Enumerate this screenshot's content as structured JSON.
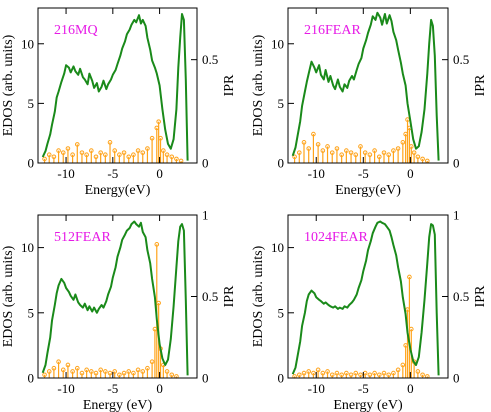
{
  "colors": {
    "edos": "#1a8a1a",
    "ipr": "#ffa31a",
    "title": "#e61ae6",
    "axes": "#000000"
  },
  "chart_data": [
    {
      "type": "line",
      "title": "216MQ",
      "xlabel": "Energy(eV)",
      "ylabel": "EDOS (arb. units)",
      "y2label": "IPR",
      "xlim": [
        -13,
        4
      ],
      "ylim": [
        0,
        13
      ],
      "y2lim": [
        0,
        0.75
      ],
      "x_ticks": [
        -10,
        -5,
        0
      ],
      "x_tick_labels": [
        "-10",
        "-5",
        "0"
      ],
      "y_ticks": [
        0,
        5,
        10
      ],
      "y_tick_labels": [
        "0",
        "5",
        "10"
      ],
      "y2_ticks": [
        0,
        0.5
      ],
      "y2_tick_labels": [
        "0",
        "0.5"
      ],
      "series": [
        {
          "axis": "left",
          "x": [
            -12.5,
            -12.2,
            -12.0,
            -11.7,
            -11.5,
            -11.2,
            -11.0,
            -10.8,
            -10.5,
            -10.2,
            -10.0,
            -9.7,
            -9.5,
            -9.2,
            -9.0,
            -8.7,
            -8.5,
            -8.2,
            -8.0,
            -7.7,
            -7.5,
            -7.2,
            -7.0,
            -6.7,
            -6.5,
            -6.2,
            -6.0,
            -5.7,
            -5.5,
            -5.2,
            -5.0,
            -4.7,
            -4.5,
            -4.2,
            -4.0,
            -3.7,
            -3.5,
            -3.2,
            -3.0,
            -2.7,
            -2.5,
            -2.2,
            -2.0,
            -1.8,
            -1.5,
            -1.3,
            -1.0,
            -0.8,
            -0.5,
            -0.3,
            0.0,
            0.3,
            0.6,
            0.9,
            1.2,
            1.5,
            1.8,
            2.0,
            2.2,
            2.4,
            2.6,
            2.8,
            3.0
          ],
          "y": [
            0.5,
            1.0,
            1.6,
            2.4,
            3.2,
            4.3,
            5.5,
            6.0,
            6.8,
            7.5,
            8.2,
            8.0,
            7.6,
            8.1,
            7.7,
            7.4,
            7.9,
            7.2,
            7.0,
            6.6,
            7.5,
            6.9,
            6.3,
            6.7,
            6.0,
            6.4,
            6.9,
            6.2,
            6.6,
            7.0,
            7.4,
            7.8,
            8.3,
            9.0,
            9.6,
            10.2,
            10.8,
            11.2,
            11.6,
            12.0,
            11.8,
            12.4,
            11.7,
            12.0,
            11.5,
            10.5,
            9.5,
            8.6,
            8.0,
            7.5,
            6.5,
            4.5,
            2.8,
            1.6,
            1.2,
            2.0,
            4.5,
            8.0,
            10.5,
            12.5,
            12.0,
            7.0,
            0.2
          ]
        },
        {
          "axis": "right",
          "x": [
            -12.3,
            -11.8,
            -11.3,
            -10.8,
            -10.3,
            -9.8,
            -9.3,
            -8.8,
            -8.3,
            -7.8,
            -7.3,
            -6.8,
            -6.3,
            -5.8,
            -5.3,
            -4.8,
            -4.3,
            -3.8,
            -3.3,
            -2.8,
            -2.3,
            -1.8,
            -1.3,
            -0.8,
            -0.3,
            -0.1,
            0.1,
            0.4,
            0.8,
            1.3,
            1.8,
            2.3
          ],
          "y": [
            0.02,
            0.04,
            0.03,
            0.06,
            0.05,
            0.07,
            0.04,
            0.09,
            0.05,
            0.04,
            0.06,
            0.03,
            0.05,
            0.04,
            0.1,
            0.06,
            0.04,
            0.05,
            0.03,
            0.04,
            0.06,
            0.05,
            0.07,
            0.12,
            0.17,
            0.2,
            0.12,
            0.06,
            0.04,
            0.03,
            0.02,
            0.01
          ]
        }
      ]
    },
    {
      "type": "line",
      "title": "216FEAR",
      "xlabel": "Energy(eV)",
      "ylabel": "EDOS (arb. units)",
      "y2label": "IPR",
      "xlim": [
        -13,
        4
      ],
      "ylim": [
        0,
        13
      ],
      "y2lim": [
        0,
        0.75
      ],
      "x_ticks": [
        -10,
        -5,
        0
      ],
      "x_tick_labels": [
        "-10",
        "-5",
        "0"
      ],
      "y_ticks": [
        0,
        5,
        10
      ],
      "y_tick_labels": [
        "0",
        "5",
        "10"
      ],
      "y2_ticks": [
        0,
        0.5
      ],
      "y2_tick_labels": [
        "0",
        "0.5"
      ],
      "series": [
        {
          "axis": "left",
          "x": [
            -12.5,
            -12.2,
            -12.0,
            -11.7,
            -11.5,
            -11.2,
            -11.0,
            -10.8,
            -10.5,
            -10.2,
            -10.0,
            -9.7,
            -9.5,
            -9.2,
            -9.0,
            -8.7,
            -8.5,
            -8.2,
            -8.0,
            -7.7,
            -7.5,
            -7.2,
            -7.0,
            -6.7,
            -6.5,
            -6.2,
            -6.0,
            -5.7,
            -5.5,
            -5.2,
            -5.0,
            -4.7,
            -4.5,
            -4.2,
            -4.0,
            -3.7,
            -3.5,
            -3.2,
            -3.0,
            -2.7,
            -2.5,
            -2.2,
            -2.0,
            -1.8,
            -1.5,
            -1.3,
            -1.0,
            -0.8,
            -0.5,
            -0.3,
            0.0,
            0.3,
            0.6,
            0.9,
            1.2,
            1.5,
            1.8,
            2.0,
            2.2,
            2.4,
            2.6,
            2.8,
            3.0
          ],
          "y": [
            0.6,
            1.3,
            2.2,
            3.5,
            4.8,
            6.0,
            6.8,
            7.5,
            8.5,
            8.0,
            7.6,
            8.2,
            7.4,
            7.0,
            7.8,
            6.8,
            7.3,
            6.5,
            6.2,
            7.0,
            6.4,
            6.0,
            6.6,
            6.3,
            6.9,
            7.3,
            7.0,
            7.8,
            8.3,
            8.8,
            9.6,
            10.3,
            10.9,
            11.6,
            12.3,
            12.0,
            12.6,
            12.2,
            11.6,
            12.5,
            11.7,
            12.4,
            11.9,
            11.0,
            10.3,
            9.5,
            8.4,
            7.5,
            6.5,
            5.0,
            3.5,
            2.0,
            1.2,
            1.4,
            2.6,
            4.5,
            7.5,
            10.0,
            12.0,
            11.5,
            9.0,
            4.0,
            0.2
          ]
        },
        {
          "axis": "right",
          "x": [
            -12.3,
            -11.8,
            -11.3,
            -10.8,
            -10.3,
            -9.8,
            -9.3,
            -8.8,
            -8.3,
            -7.8,
            -7.3,
            -6.8,
            -6.3,
            -5.8,
            -5.3,
            -4.8,
            -4.3,
            -3.8,
            -3.3,
            -2.8,
            -2.3,
            -1.8,
            -1.3,
            -0.8,
            -0.5,
            -0.3,
            -0.1,
            0.1,
            0.4,
            0.8,
            1.3,
            1.8
          ],
          "y": [
            0.03,
            0.05,
            0.1,
            0.07,
            0.14,
            0.09,
            0.06,
            0.08,
            0.05,
            0.07,
            0.04,
            0.06,
            0.05,
            0.04,
            0.08,
            0.05,
            0.04,
            0.06,
            0.03,
            0.05,
            0.04,
            0.06,
            0.07,
            0.1,
            0.14,
            0.21,
            0.17,
            0.08,
            0.05,
            0.03,
            0.02,
            0.01
          ]
        }
      ]
    },
    {
      "type": "line",
      "title": "512FEAR",
      "xlabel": "Energy (eV)",
      "ylabel": "EDOS (arb. units)",
      "y2label": "IPR",
      "xlim": [
        -13,
        4
      ],
      "ylim": [
        0,
        12.5
      ],
      "y2lim": [
        0,
        1
      ],
      "x_ticks": [
        -10,
        -5,
        0
      ],
      "x_tick_labels": [
        "-10",
        "-5",
        "0"
      ],
      "y_ticks": [
        0,
        5,
        10
      ],
      "y_tick_labels": [
        "0",
        "5",
        "10"
      ],
      "y2_ticks": [
        0,
        0.5,
        1
      ],
      "y2_tick_labels": [
        "0",
        "0.5",
        "1"
      ],
      "series": [
        {
          "axis": "left",
          "x": [
            -12.5,
            -12.2,
            -12.0,
            -11.7,
            -11.5,
            -11.2,
            -11.0,
            -10.8,
            -10.5,
            -10.2,
            -10.0,
            -9.7,
            -9.5,
            -9.2,
            -9.0,
            -8.7,
            -8.5,
            -8.2,
            -8.0,
            -7.7,
            -7.5,
            -7.2,
            -7.0,
            -6.7,
            -6.5,
            -6.2,
            -6.0,
            -5.7,
            -5.5,
            -5.2,
            -5.0,
            -4.7,
            -4.5,
            -4.2,
            -4.0,
            -3.7,
            -3.5,
            -3.2,
            -3.0,
            -2.7,
            -2.5,
            -2.2,
            -2.0,
            -1.8,
            -1.5,
            -1.3,
            -1.0,
            -0.8,
            -0.5,
            -0.3,
            0.0,
            0.3,
            0.6,
            0.9,
            1.2,
            1.5,
            1.8,
            2.0,
            2.2,
            2.4,
            2.6,
            2.8,
            3.0
          ],
          "y": [
            0.4,
            1.0,
            1.9,
            3.1,
            4.4,
            5.6,
            6.5,
            7.1,
            7.6,
            7.3,
            6.9,
            6.6,
            6.3,
            6.0,
            6.4,
            5.8,
            5.6,
            5.4,
            5.7,
            5.2,
            5.5,
            5.1,
            5.4,
            5.0,
            5.3,
            5.6,
            5.4,
            5.9,
            6.4,
            7.0,
            7.7,
            8.5,
            9.3,
            10.0,
            10.6,
            11.0,
            11.3,
            11.5,
            11.8,
            12.0,
            11.8,
            11.6,
            11.9,
            11.2,
            10.8,
            9.8,
            8.8,
            7.6,
            6.2,
            4.5,
            2.6,
            1.5,
            1.0,
            1.4,
            3.0,
            5.5,
            8.5,
            10.5,
            11.6,
            11.8,
            11.3,
            6.0,
            0.2
          ]
        },
        {
          "axis": "right",
          "x": [
            -12.3,
            -11.8,
            -11.3,
            -10.8,
            -10.3,
            -9.8,
            -9.3,
            -8.8,
            -8.3,
            -7.8,
            -7.3,
            -6.8,
            -6.3,
            -5.8,
            -5.3,
            -4.8,
            -4.3,
            -3.8,
            -3.3,
            -2.8,
            -2.3,
            -1.8,
            -1.3,
            -0.8,
            -0.5,
            -0.3,
            -0.1,
            0.1,
            0.4,
            0.8,
            1.3,
            1.8
          ],
          "y": [
            0.02,
            0.04,
            0.06,
            0.1,
            0.05,
            0.08,
            0.04,
            0.06,
            0.03,
            0.05,
            0.04,
            0.03,
            0.05,
            0.04,
            0.03,
            0.04,
            0.02,
            0.03,
            0.04,
            0.03,
            0.05,
            0.04,
            0.06,
            0.1,
            0.3,
            0.82,
            0.46,
            0.18,
            0.08,
            0.04,
            0.02,
            0.01
          ]
        }
      ]
    },
    {
      "type": "line",
      "title": "1024FEAR",
      "xlabel": "Energy (eV)",
      "ylabel": "EDOS (arb. units)",
      "y2label": "IPR",
      "xlim": [
        -13,
        4
      ],
      "ylim": [
        0,
        12.5
      ],
      "y2lim": [
        0,
        1
      ],
      "x_ticks": [
        -10,
        -5,
        0
      ],
      "x_tick_labels": [
        "-10",
        "-5",
        "0"
      ],
      "y_ticks": [
        0,
        5,
        10
      ],
      "y_tick_labels": [
        "0",
        "5",
        "10"
      ],
      "y2_ticks": [
        0,
        0.5,
        1
      ],
      "y2_tick_labels": [
        "0",
        "0.5",
        "1"
      ],
      "series": [
        {
          "axis": "left",
          "x": [
            -12.5,
            -12.2,
            -12.0,
            -11.7,
            -11.5,
            -11.2,
            -11.0,
            -10.8,
            -10.5,
            -10.2,
            -10.0,
            -9.7,
            -9.5,
            -9.2,
            -9.0,
            -8.7,
            -8.5,
            -8.2,
            -8.0,
            -7.7,
            -7.5,
            -7.2,
            -7.0,
            -6.7,
            -6.5,
            -6.2,
            -6.0,
            -5.7,
            -5.5,
            -5.2,
            -5.0,
            -4.7,
            -4.5,
            -4.2,
            -4.0,
            -3.7,
            -3.5,
            -3.2,
            -3.0,
            -2.7,
            -2.5,
            -2.2,
            -2.0,
            -1.8,
            -1.5,
            -1.3,
            -1.0,
            -0.8,
            -0.5,
            -0.3,
            0.0,
            0.3,
            0.6,
            0.9,
            1.2,
            1.5,
            1.8,
            2.0,
            2.2,
            2.4,
            2.6,
            2.8,
            3.0
          ],
          "y": [
            0.3,
            0.8,
            1.6,
            2.8,
            4.0,
            5.0,
            5.9,
            6.4,
            6.7,
            6.5,
            6.2,
            6.0,
            5.9,
            5.7,
            5.8,
            5.6,
            5.5,
            5.4,
            5.5,
            5.3,
            5.4,
            5.3,
            5.5,
            5.4,
            5.6,
            5.8,
            6.0,
            6.4,
            6.9,
            7.5,
            8.2,
            9.0,
            9.8,
            10.5,
            11.1,
            11.6,
            11.9,
            12.0,
            11.9,
            11.8,
            11.6,
            11.3,
            10.8,
            10.2,
            9.4,
            8.5,
            7.4,
            6.2,
            4.9,
            3.5,
            2.2,
            1.3,
            1.0,
            1.6,
            3.5,
            6.0,
            8.8,
            10.8,
            11.8,
            11.7,
            11.0,
            5.0,
            0.2
          ]
        },
        {
          "axis": "right",
          "x": [
            -12.3,
            -11.8,
            -11.3,
            -10.8,
            -10.3,
            -9.8,
            -9.3,
            -8.8,
            -8.3,
            -7.8,
            -7.3,
            -6.8,
            -6.3,
            -5.8,
            -5.3,
            -4.8,
            -4.3,
            -3.8,
            -3.3,
            -2.8,
            -2.3,
            -1.8,
            -1.3,
            -0.8,
            -0.5,
            -0.3,
            -0.1,
            0.1,
            0.4,
            0.8,
            1.3,
            1.8
          ],
          "y": [
            0.01,
            0.02,
            0.03,
            0.04,
            0.03,
            0.05,
            0.03,
            0.04,
            0.02,
            0.03,
            0.02,
            0.03,
            0.02,
            0.03,
            0.02,
            0.03,
            0.02,
            0.03,
            0.02,
            0.03,
            0.02,
            0.03,
            0.05,
            0.08,
            0.2,
            0.42,
            0.62,
            0.3,
            0.1,
            0.04,
            0.02,
            0.01
          ]
        }
      ]
    }
  ]
}
